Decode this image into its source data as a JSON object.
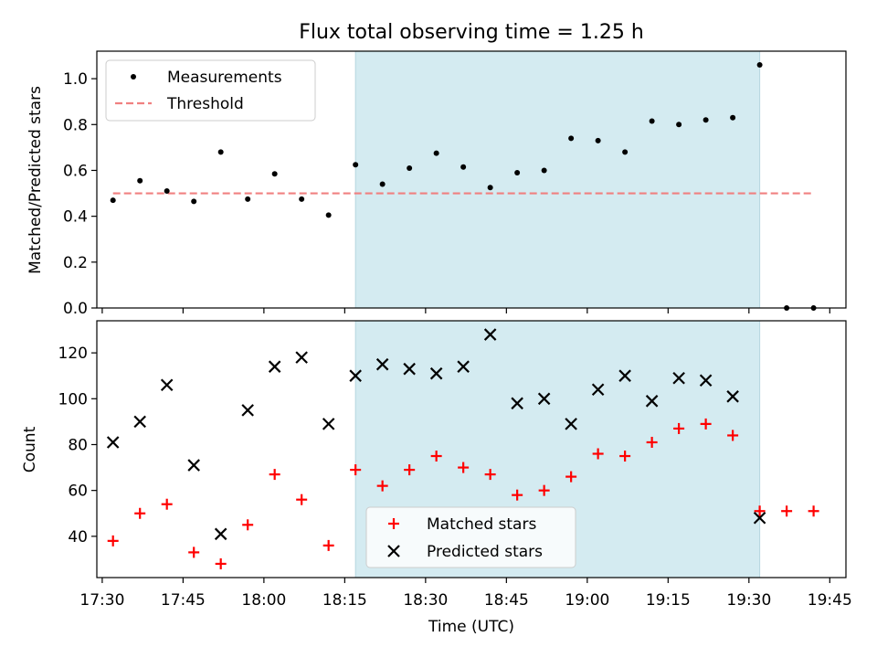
{
  "chart_data": [
    {
      "type": "scatter",
      "title": "Flux total observing time = 1.25 h",
      "ylabel": "Matched/Predicted stars",
      "xlabel": "",
      "ylim": [
        0,
        1.12
      ],
      "yticks": [
        "0.0",
        "0.2",
        "0.4",
        "0.6",
        "0.8",
        "1.0"
      ],
      "legend": {
        "placement": "top-left",
        "entries": [
          "Measurements",
          "Threshold"
        ]
      },
      "shaded_interval": [
        "18:17",
        "19:32"
      ],
      "shade_color": "#d4ebf1",
      "series": [
        {
          "name": "Measurements",
          "marker": "dot",
          "color": "#000000",
          "x": [
            "17:32",
            "17:37",
            "17:42",
            "17:47",
            "17:52",
            "17:57",
            "18:02",
            "18:07",
            "18:12",
            "18:17",
            "18:22",
            "18:27",
            "18:32",
            "18:37",
            "18:42",
            "18:47",
            "18:52",
            "18:57",
            "19:02",
            "19:07",
            "19:12",
            "19:17",
            "19:22",
            "19:27",
            "19:32",
            "19:37",
            "19:42"
          ],
          "y": [
            0.47,
            0.555,
            0.51,
            0.465,
            0.68,
            0.475,
            0.585,
            0.475,
            0.405,
            0.625,
            0.54,
            0.61,
            0.675,
            0.615,
            0.525,
            0.59,
            0.6,
            0.74,
            0.73,
            0.68,
            0.815,
            0.8,
            0.82,
            0.83,
            1.06,
            0.0,
            0.0
          ]
        },
        {
          "name": "Threshold",
          "marker": "dashed-line",
          "color": "#f08080",
          "x": [
            "17:32",
            "19:42"
          ],
          "y": [
            0.5,
            0.5
          ]
        }
      ]
    },
    {
      "type": "scatter",
      "title": "",
      "ylabel": "Count",
      "xlabel": "Time (UTC)",
      "ylim": [
        22,
        134
      ],
      "yticks": [
        "40",
        "60",
        "80",
        "100",
        "120"
      ],
      "xticks": [
        "17:30",
        "17:45",
        "18:00",
        "18:15",
        "18:30",
        "18:45",
        "19:00",
        "19:15",
        "19:30",
        "19:45"
      ],
      "xlim": [
        "17:29",
        "19:48"
      ],
      "legend": {
        "placement": "lower-center",
        "entries": [
          "Matched stars",
          "Predicted stars"
        ]
      },
      "shaded_interval": [
        "18:17",
        "19:32"
      ],
      "shade_color": "#d4ebf1",
      "series": [
        {
          "name": "Matched stars",
          "marker": "plus",
          "color": "#ff0000",
          "x": [
            "17:32",
            "17:37",
            "17:42",
            "17:47",
            "17:52",
            "17:57",
            "18:02",
            "18:07",
            "18:12",
            "18:17",
            "18:22",
            "18:27",
            "18:32",
            "18:37",
            "18:42",
            "18:47",
            "18:52",
            "18:57",
            "19:02",
            "19:07",
            "19:12",
            "19:17",
            "19:22",
            "19:27",
            "19:32",
            "19:37",
            "19:42"
          ],
          "y": [
            38,
            50,
            54,
            33,
            28,
            45,
            67,
            56,
            36,
            69,
            62,
            69,
            75,
            70,
            67,
            58,
            60,
            66,
            76,
            75,
            81,
            87,
            89,
            84,
            51,
            51,
            51
          ]
        },
        {
          "name": "Predicted stars",
          "marker": "x",
          "color": "#000000",
          "x": [
            "17:32",
            "17:37",
            "17:42",
            "17:47",
            "17:52",
            "17:57",
            "18:02",
            "18:07",
            "18:12",
            "18:17",
            "18:22",
            "18:27",
            "18:32",
            "18:37",
            "18:42",
            "18:47",
            "18:52",
            "18:57",
            "19:02",
            "19:07",
            "19:12",
            "19:17",
            "19:22",
            "19:27",
            "19:32"
          ],
          "y": [
            81,
            90,
            106,
            71,
            41,
            95,
            114,
            118,
            89,
            110,
            115,
            113,
            111,
            114,
            128,
            98,
            100,
            89,
            104,
            110,
            99,
            109,
            108,
            101,
            48
          ]
        }
      ]
    }
  ]
}
